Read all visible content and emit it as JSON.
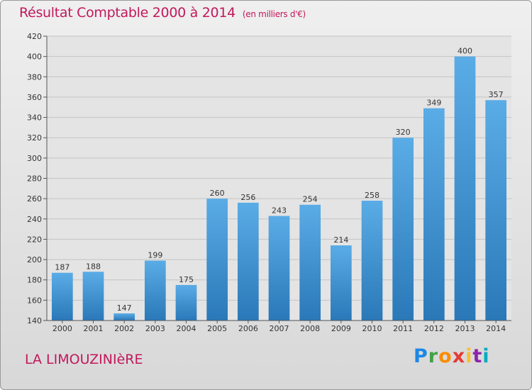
{
  "chart_data": {
    "type": "bar",
    "title": "Résultat Comptable 2000 à 2014",
    "subtitle": "(en milliers d'€)",
    "categories": [
      "2000",
      "2001",
      "2002",
      "2003",
      "2004",
      "2005",
      "2006",
      "2007",
      "2008",
      "2009",
      "2010",
      "2011",
      "2012",
      "2013",
      "2014"
    ],
    "values": [
      187,
      188,
      147,
      199,
      175,
      260,
      256,
      243,
      254,
      214,
      258,
      320,
      349,
      400,
      357
    ],
    "ylim": [
      140,
      420
    ],
    "yticks": [
      140,
      160,
      180,
      200,
      220,
      240,
      260,
      280,
      300,
      320,
      340,
      360,
      380,
      400,
      420
    ],
    "xlabel": "",
    "ylabel": "",
    "grid": true
  },
  "commune": "LA LIMOUZINIèRE",
  "brand": {
    "letters": [
      "P",
      "r",
      "o",
      "x",
      "i",
      "t",
      "i"
    ],
    "colors": [
      "#1e88e5",
      "#43a047",
      "#fb8c00",
      "#e53935",
      "#fbc02d",
      "#8e24aa",
      "#00acc1"
    ]
  },
  "colors": {
    "bar_top": "#5aace6",
    "bar_bottom": "#2a78b8",
    "accent": "#c2185b"
  }
}
